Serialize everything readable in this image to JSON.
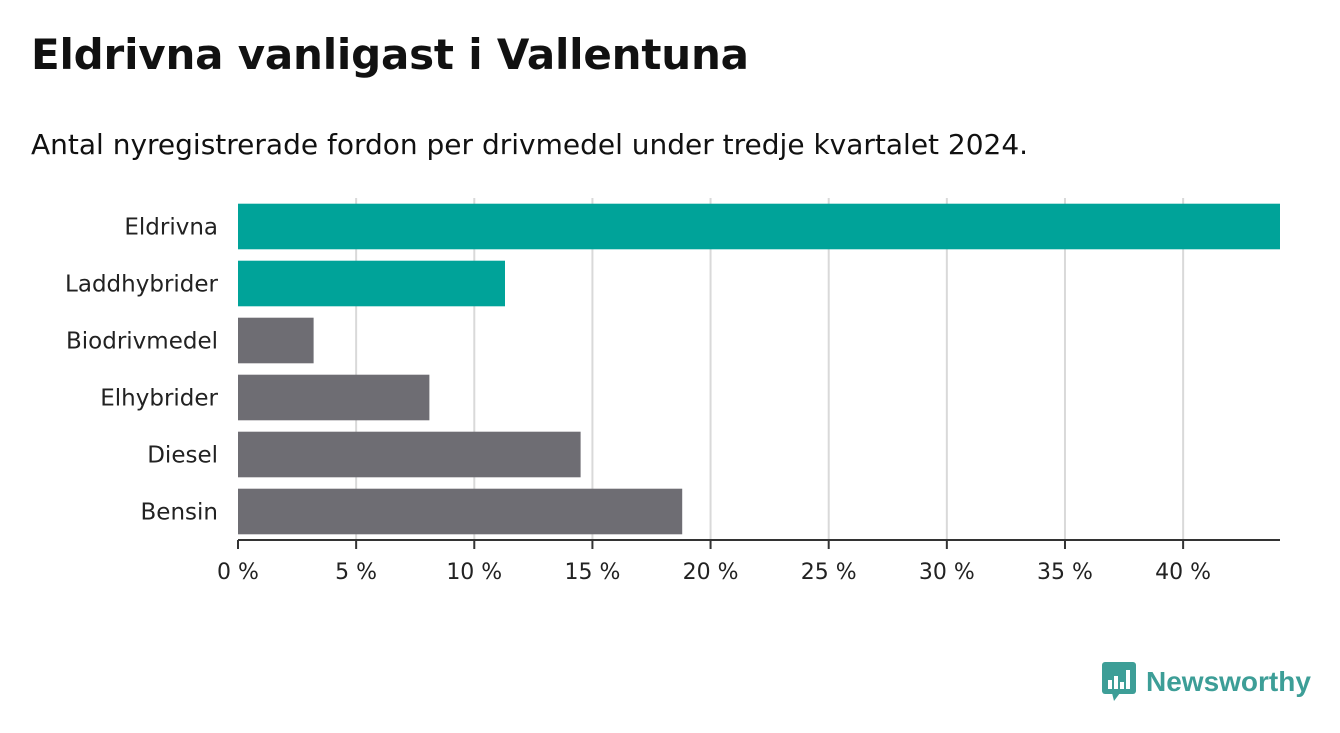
{
  "header": {
    "title": "Eldrivna vanligast i Vallentuna",
    "subtitle": "Antal nyregistrerade fordon per drivmedel under tredje kvartalet 2024."
  },
  "chart_data": {
    "type": "bar",
    "orientation": "horizontal",
    "categories": [
      "Eldrivna",
      "Laddhybrider",
      "Biodrivmedel",
      "Elhybrider",
      "Diesel",
      "Bensin"
    ],
    "values": [
      44.1,
      11.3,
      3.2,
      8.1,
      14.5,
      18.8
    ],
    "highlighted": [
      true,
      true,
      false,
      false,
      false,
      false
    ],
    "xlim": [
      0,
      44.1
    ],
    "xticks": [
      0,
      5,
      10,
      15,
      20,
      25,
      30,
      35,
      40
    ],
    "tick_labels": [
      "0 %",
      "5 %",
      "10 %",
      "15 %",
      "20 %",
      "25 %",
      "30 %",
      "35 %",
      "40 %"
    ],
    "grid": "vertical",
    "colors": {
      "highlight": "#00a399",
      "default": "#6e6d73",
      "grid": "#d9d9d9",
      "axis": "#333333"
    }
  },
  "brand": {
    "name": "Newsworthy",
    "color": "#3d9e97",
    "icon": "newsworthy-logo-icon"
  }
}
